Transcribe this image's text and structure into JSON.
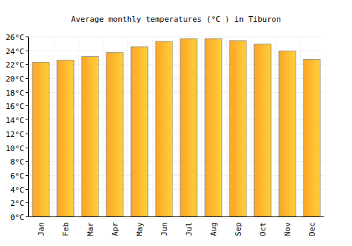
{
  "chart_data": {
    "type": "bar",
    "title": "Average monthly temperatures (°C ) in Tiburon",
    "categories": [
      "Jan",
      "Feb",
      "Mar",
      "Apr",
      "May",
      "Jun",
      "Jul",
      "Aug",
      "Sep",
      "Oct",
      "Nov",
      "Dec"
    ],
    "values": [
      22.3,
      22.6,
      23.1,
      23.7,
      24.5,
      25.3,
      25.7,
      25.7,
      25.4,
      24.9,
      23.9,
      22.7
    ],
    "color": "#fca526",
    "ylim": [
      0,
      26
    ],
    "yticks": [
      {
        "value": 0,
        "label": "0°C"
      },
      {
        "value": 2,
        "label": "2°C"
      },
      {
        "value": 4,
        "label": "4°C"
      },
      {
        "value": 6,
        "label": "6°C"
      },
      {
        "value": 8,
        "label": "8°C"
      },
      {
        "value": 10,
        "label": "10°C"
      },
      {
        "value": 12,
        "label": "12°C"
      },
      {
        "value": 14,
        "label": "14°C"
      },
      {
        "value": 16,
        "label": "16°C"
      },
      {
        "value": 18,
        "label": "18°C"
      },
      {
        "value": 20,
        "label": "20°C"
      },
      {
        "value": 22,
        "label": "22°C"
      },
      {
        "value": 24,
        "label": "24°C"
      },
      {
        "value": 26,
        "label": "26°C"
      }
    ],
    "grid": true
  }
}
